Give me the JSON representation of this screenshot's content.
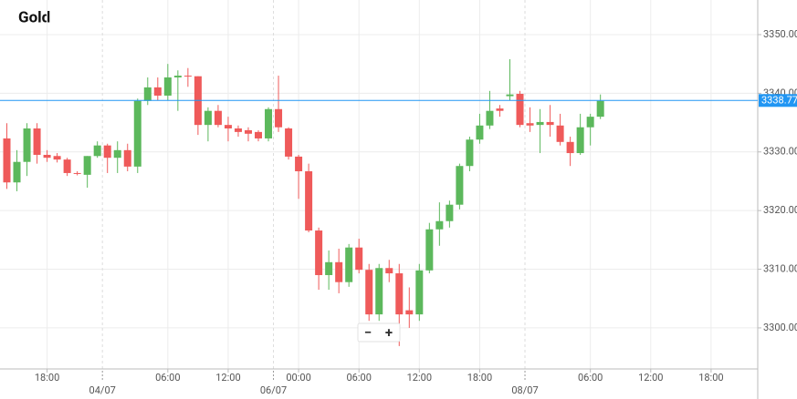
{
  "chart_data": {
    "type": "candlestick",
    "title": "Gold",
    "categories": [
      null,
      null,
      null,
      null,
      "18:00",
      null,
      null,
      null,
      null,
      null,
      null,
      null,
      null,
      null,
      null,
      null,
      "06:00",
      null,
      null,
      null,
      null,
      null,
      "12:00",
      null,
      null,
      null,
      null,
      null,
      null,
      "00:00",
      null,
      null,
      null,
      null,
      null,
      "06:00",
      null,
      null,
      null,
      null,
      null,
      "12:00",
      null,
      null,
      null,
      null,
      null,
      "18:00",
      null,
      null,
      null,
      null,
      null,
      null,
      null,
      null,
      null,
      null,
      "06:00",
      null,
      null,
      null,
      null,
      null,
      "12:00",
      null,
      null,
      null,
      null,
      null,
      "18:00"
    ],
    "dates": [
      null,
      null,
      null,
      null,
      null,
      null,
      null,
      null,
      null,
      null,
      "04/07",
      null,
      null,
      null,
      null,
      null,
      null,
      null,
      null,
      null,
      null,
      null,
      null,
      null,
      null,
      null,
      null,
      "06/07",
      null,
      null,
      null,
      null,
      null,
      null,
      null,
      null,
      null,
      null,
      null,
      null,
      null,
      null,
      null,
      null,
      null,
      null,
      null,
      null,
      null,
      null,
      null,
      null,
      "08/07",
      null,
      null,
      null,
      null,
      null,
      null,
      null,
      null,
      null,
      null,
      null,
      null,
      null,
      null,
      null,
      null,
      null,
      null
    ],
    "open": [
      3332.3,
      3324.8,
      3328.3,
      3334.0,
      3329.5,
      3329.3,
      3328.7,
      3326.4,
      3326.1,
      3329.3,
      3331.1,
      3329.0,
      3330.3,
      3327.5,
      3338.7,
      3341.0,
      3339.6,
      3342.7,
      3343.0,
      3342.9,
      3334.6,
      3337.0,
      3334.6,
      3334.0,
      3333.7,
      3333.4,
      3332.3,
      3337.3,
      3334.0,
      3329.2,
      3326.7,
      3316.6,
      3309.0,
      3311.2,
      3307.8,
      3313.7,
      3309.9,
      3302.3,
      3310.2,
      3309.3,
      3303.0,
      3302.3,
      3309.8,
      3316.8,
      3318.2,
      3321.0,
      3327.6,
      3332.1,
      3334.5,
      3337.4,
      3339.5,
      3339.9,
      3334.9,
      3334.6,
      3335.1,
      3334.5,
      3331.7,
      3329.8,
      3334.2,
      3336.0,
      null,
      null,
      null,
      null,
      null,
      null,
      null,
      null,
      null,
      null,
      null
    ],
    "high": [
      3334.9,
      3330.3,
      3334.9,
      3334.9,
      3330.3,
      3329.8,
      3329.0,
      3326.7,
      3329.3,
      3331.8,
      3331.4,
      3331.8,
      3331.4,
      3339.1,
      3342.7,
      3342.7,
      3345.0,
      3343.9,
      3344.3,
      3342.9,
      3337.6,
      3338.0,
      3336.0,
      3334.5,
      3334.2,
      3333.7,
      3337.6,
      3343.0,
      3334.2,
      3329.5,
      3328.0,
      3317.1,
      3313.2,
      3313.5,
      3314.3,
      3315.2,
      3310.9,
      3310.9,
      3311.6,
      3310.9,
      3306.9,
      3310.9,
      3317.9,
      3321.4,
      3321.7,
      3328.0,
      3332.6,
      3336.5,
      3340.4,
      3338.0,
      3345.8,
      3340.4,
      3337.6,
      3337.3,
      3338.0,
      3336.5,
      3332.6,
      3336.5,
      3336.5,
      3339.8,
      null,
      null,
      null,
      null,
      null,
      null,
      null,
      null,
      null,
      null,
      null
    ],
    "low": [
      3323.7,
      3323.3,
      3325.9,
      3328.0,
      3328.3,
      3328.2,
      3325.9,
      3326.0,
      3323.9,
      3329.0,
      3326.4,
      3326.4,
      3326.7,
      3326.4,
      3338.0,
      3338.8,
      3338.8,
      3337.0,
      3341.1,
      3332.9,
      3331.8,
      3334.2,
      3331.8,
      3332.6,
      3331.8,
      3331.8,
      3331.8,
      3333.4,
      3328.7,
      3322.0,
      3316.3,
      3306.5,
      3306.5,
      3305.9,
      3307.0,
      3309.3,
      3301.2,
      3301.2,
      3307.8,
      3296.9,
      3300.0,
      3301.2,
      3309.3,
      3314.0,
      3317.1,
      3320.2,
      3326.7,
      3331.4,
      3333.9,
      3336.0,
      3338.8,
      3334.2,
      3333.4,
      3329.8,
      3332.6,
      3331.1,
      3327.6,
      3329.5,
      3331.1,
      3335.6,
      null,
      null,
      null,
      null,
      null,
      null,
      null,
      null,
      null,
      null,
      null
    ],
    "close": [
      3324.8,
      3328.3,
      3334.0,
      3329.5,
      3329.0,
      3328.7,
      3326.4,
      3326.3,
      3329.3,
      3331.1,
      3329.0,
      3330.3,
      3327.5,
      3338.7,
      3341.0,
      3339.6,
      3342.7,
      3343.0,
      3342.9,
      3334.6,
      3337.0,
      3334.6,
      3334.0,
      3333.4,
      3333.1,
      3332.3,
      3337.3,
      3334.2,
      3329.2,
      3326.7,
      3316.6,
      3309.0,
      3311.2,
      3307.8,
      3313.7,
      3309.9,
      3302.3,
      3310.2,
      3309.3,
      3302.3,
      3302.3,
      3309.8,
      3316.8,
      3318.2,
      3321.0,
      3327.6,
      3332.1,
      3334.5,
      3337.0,
      3337.0,
      3339.8,
      3334.6,
      3334.5,
      3335.1,
      3334.6,
      3331.7,
      3329.8,
      3334.2,
      3336.0,
      3338.7,
      null,
      null,
      null,
      null,
      null,
      null,
      null,
      null,
      null,
      null,
      null
    ],
    "up_color": "#5cb85c",
    "down_color": "#ef5a5a",
    "ylim": [
      3293.0,
      3355.9
    ],
    "yticks": [
      {
        "value": 3300,
        "label": "3300.00"
      },
      {
        "value": 3310,
        "label": "3310.00"
      },
      {
        "value": 3320,
        "label": "3320.00"
      },
      {
        "value": 3330,
        "label": "3330.00"
      },
      {
        "value": 3340,
        "label": "3340.00"
      },
      {
        "value": 3350,
        "label": "3350.00"
      }
    ],
    "last_price": 3338.77,
    "last_price_color": "#2196f3",
    "grid": true,
    "controls": [
      "−",
      "+"
    ]
  }
}
